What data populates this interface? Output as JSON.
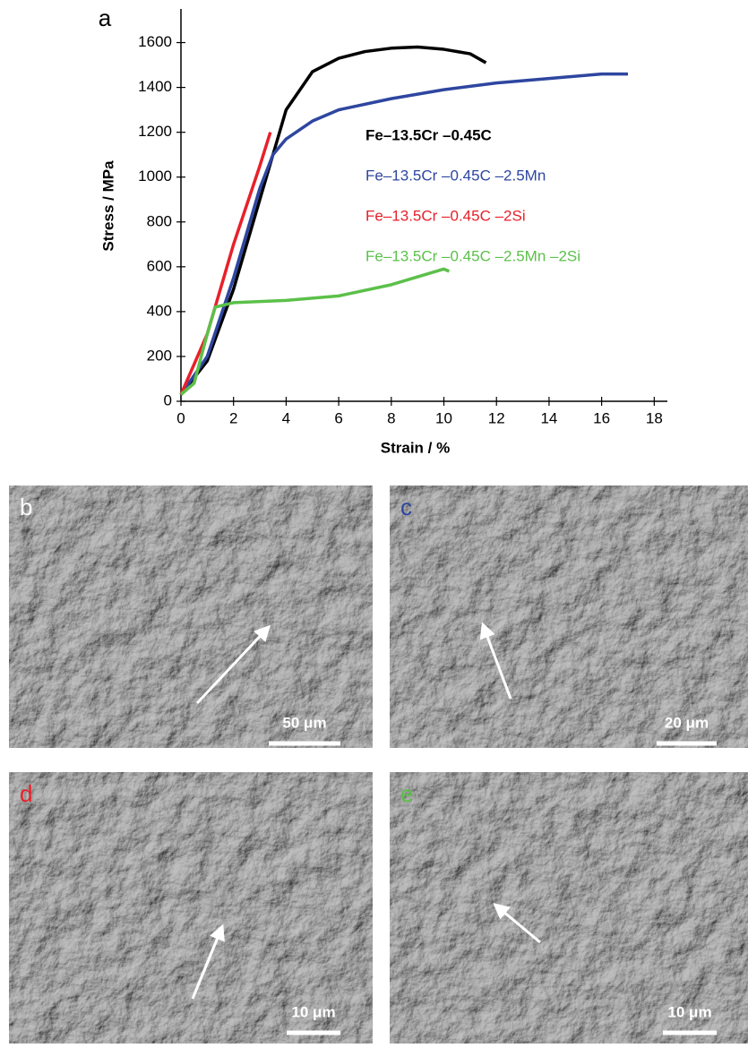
{
  "chart_data": {
    "type": "line",
    "panel_label": "a",
    "x_label": "Strain / %",
    "y_label": "Stress / MPa",
    "xlim": [
      0,
      18.5
    ],
    "ylim": [
      0,
      1750
    ],
    "xticks": [
      0,
      2,
      4,
      6,
      8,
      10,
      12,
      14,
      16,
      18
    ],
    "yticks": [
      0,
      200,
      400,
      600,
      800,
      1000,
      1200,
      1400,
      1600
    ],
    "series": [
      {
        "name": "Fe–13.5Cr –0.45C",
        "color": "#000000",
        "x": [
          0,
          1,
          2,
          3,
          3.5,
          4,
          5,
          6,
          7,
          8,
          9,
          10,
          11,
          11.6
        ],
        "values": [
          30,
          180,
          500,
          900,
          1100,
          1300,
          1470,
          1530,
          1560,
          1575,
          1580,
          1570,
          1550,
          1510
        ]
      },
      {
        "name": "Fe–13.5Cr –0.45C –2.5Mn",
        "color": "#2e46a0",
        "x": [
          0,
          1,
          2,
          3,
          3.5,
          4,
          5,
          6,
          8,
          10,
          12,
          14,
          16,
          17
        ],
        "values": [
          30,
          200,
          550,
          950,
          1100,
          1170,
          1250,
          1300,
          1350,
          1390,
          1420,
          1440,
          1460,
          1460
        ]
      },
      {
        "name": "Fe–13.5Cr –0.45C –2Si",
        "color": "#e8202a",
        "x": [
          0,
          1,
          2,
          3,
          3.4
        ],
        "values": [
          30,
          300,
          700,
          1050,
          1200
        ]
      },
      {
        "name": "Fe–13.5Cr –0.45C –2.5Mn –2Si",
        "color": "#5cc04a",
        "x": [
          0,
          0.5,
          1,
          1.3,
          2,
          4,
          6,
          8,
          10,
          10.2
        ],
        "values": [
          30,
          80,
          300,
          420,
          440,
          450,
          470,
          520,
          590,
          580
        ]
      }
    ]
  },
  "panels": [
    {
      "label": "b",
      "scale_bar": "50 μm"
    },
    {
      "label": "c",
      "scale_bar": "20 μm"
    },
    {
      "label": "d",
      "scale_bar": "10 μm"
    },
    {
      "label": "e",
      "scale_bar": "10 μm"
    }
  ]
}
